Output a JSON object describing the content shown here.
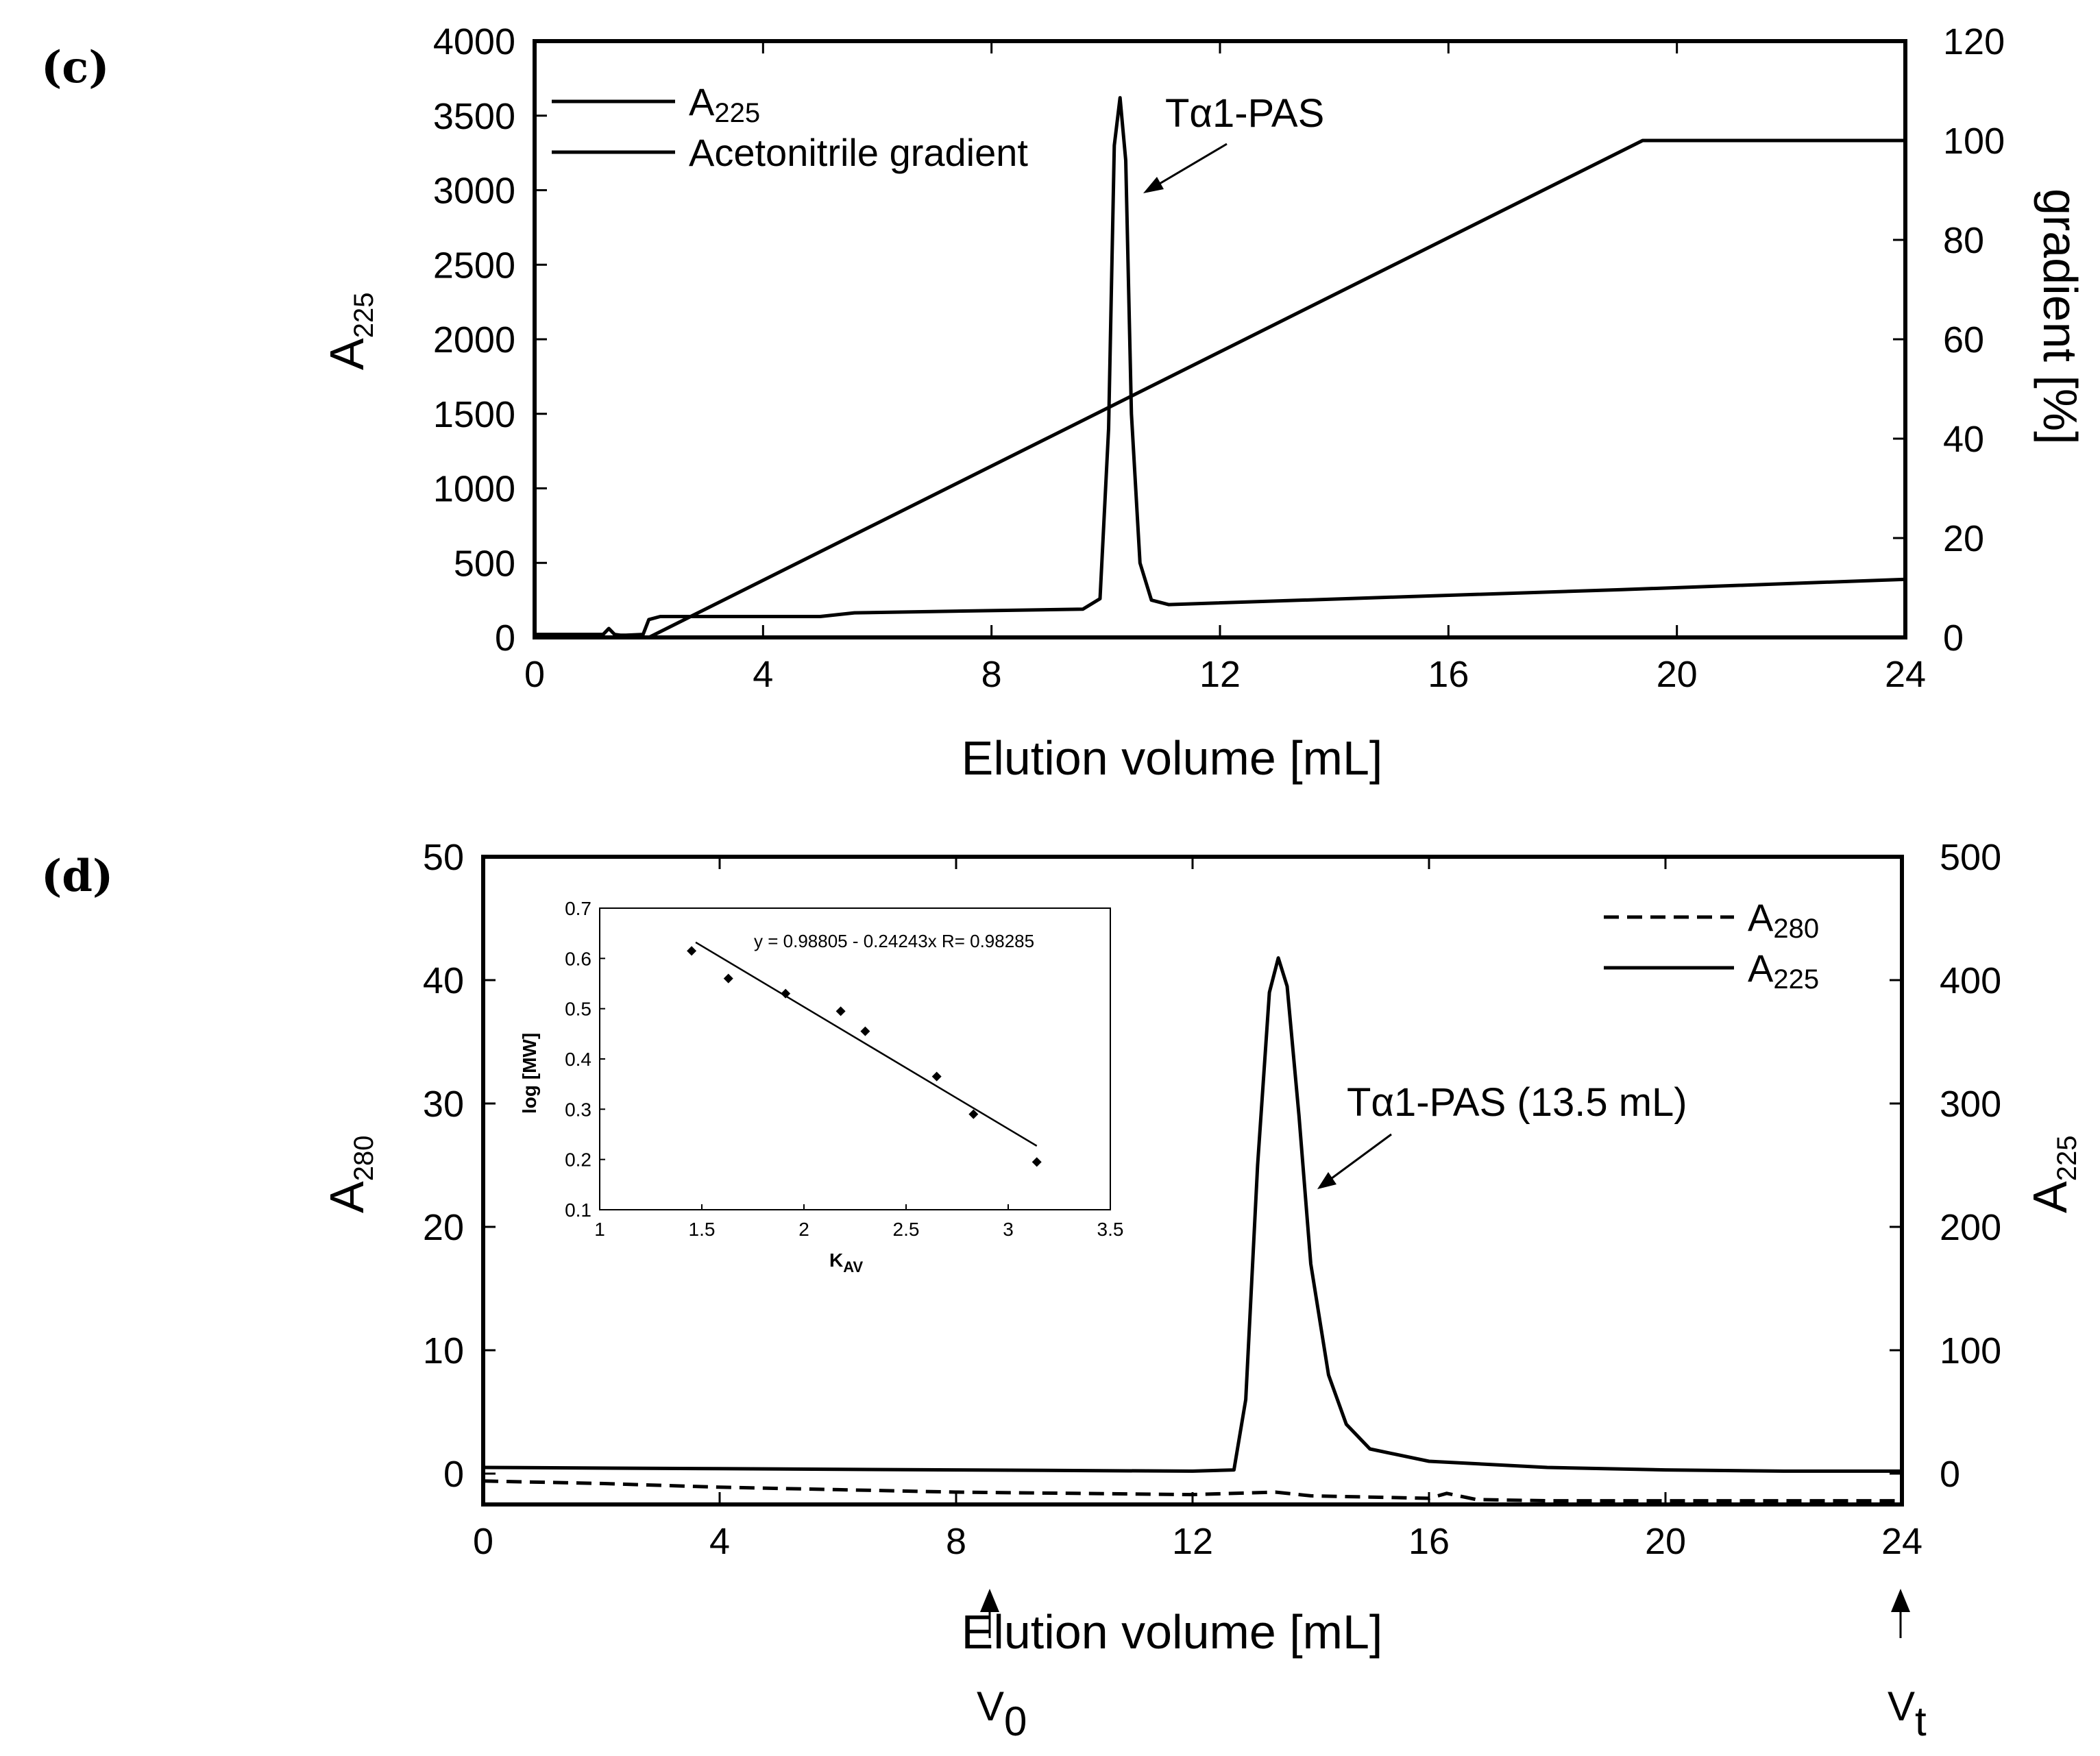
{
  "panels": {
    "c": {
      "label": "(c)",
      "ylabel_left": "A",
      "ylabel_left_sub": "225",
      "ylabel_right": "gradient [%]",
      "xlabel": "Elution volume [mL]",
      "legend": [
        {
          "text": "A",
          "sub": "225"
        },
        {
          "text": "Acetonitrile gradient",
          "sub": ""
        }
      ],
      "annotation": "Tα1-PAS"
    },
    "d": {
      "label": "(d)",
      "ylabel_left": "A",
      "ylabel_left_sub": "280",
      "ylabel_right": "A",
      "ylabel_right_sub": "225",
      "xlabel": "Elution volume [mL]",
      "legend": [
        {
          "text": "A",
          "sub": "280",
          "style": "dashed"
        },
        {
          "text": "A",
          "sub": "225",
          "style": "solid"
        }
      ],
      "annotation": "Tα1-PAS (13.5 mL)",
      "v0_label": "V",
      "v0_sub": "0",
      "vt_label": "V",
      "vt_sub": "t",
      "inset": {
        "equation": "y = 0.98805 - 0.24243x   R= 0.98285",
        "xlabel": "K",
        "xlabel_sub": "AV",
        "ylabel": "log [MW]"
      }
    }
  },
  "chart_data": [
    {
      "type": "line",
      "panel": "c",
      "xlabel": "Elution volume [mL]",
      "ylabel": "A225",
      "ylabel_right": "gradient [%]",
      "xlim": [
        0,
        24
      ],
      "ylim": [
        0,
        4000
      ],
      "ylim_right": [
        0,
        120
      ],
      "xticks": [
        0,
        4,
        8,
        12,
        16,
        20,
        24
      ],
      "yticks": [
        0,
        500,
        1000,
        1500,
        2000,
        2500,
        3000,
        3500,
        4000
      ],
      "yticks_right": [
        0,
        20,
        40,
        60,
        80,
        100,
        120
      ],
      "series": [
        {
          "name": "A225",
          "axis": "left",
          "x": [
            0,
            1.2,
            1.3,
            1.4,
            1.5,
            1.6,
            1.9,
            2.0,
            2.2,
            5.0,
            5.6,
            9.6,
            9.9,
            10.05,
            10.15,
            10.25,
            10.35,
            10.45,
            10.6,
            10.8,
            11.1,
            15.0,
            19.0,
            24.0
          ],
          "y": [
            20,
            20,
            60,
            20,
            15,
            15,
            20,
            120,
            140,
            140,
            165,
            190,
            260,
            1400,
            3300,
            3620,
            3200,
            1500,
            500,
            250,
            220,
            270,
            320,
            390
          ]
        },
        {
          "name": "Acetonitrile gradient",
          "axis": "right",
          "x": [
            0,
            1.8,
            2.0,
            19.4,
            24
          ],
          "y": [
            0,
            0,
            0,
            100,
            100
          ]
        }
      ],
      "annotations": [
        {
          "text": "Tα1-PAS",
          "x": 10.3,
          "y": 3620
        }
      ],
      "legend_position": "top-left",
      "grid": false
    },
    {
      "type": "line",
      "panel": "d",
      "xlabel": "Elution volume [mL]",
      "ylabel": "A280",
      "ylabel_right": "A225",
      "xlim": [
        0,
        24
      ],
      "ylim": [
        -2.5,
        50
      ],
      "ylim_right": [
        -25,
        500
      ],
      "xticks": [
        0,
        4,
        8,
        12,
        16,
        20,
        24
      ],
      "yticks": [
        0,
        10,
        20,
        30,
        40,
        50
      ],
      "yticks_right": [
        0,
        100,
        200,
        300,
        400,
        500
      ],
      "series": [
        {
          "name": "A280",
          "style": "dashed",
          "axis": "left",
          "x": [
            0,
            2,
            4,
            6,
            8,
            10,
            12,
            13.4,
            14,
            15,
            16,
            16.3,
            16.8,
            18,
            20,
            22,
            24
          ],
          "y": [
            -0.6,
            -0.8,
            -1.1,
            -1.3,
            -1.5,
            -1.6,
            -1.7,
            -1.5,
            -1.8,
            -1.9,
            -2.0,
            -1.6,
            -2.1,
            -2.2,
            -2.2,
            -2.2,
            -2.2
          ]
        },
        {
          "name": "A225",
          "style": "solid",
          "axis": "right",
          "x": [
            0,
            4,
            8,
            12,
            12.7,
            12.9,
            13.1,
            13.3,
            13.45,
            13.6,
            13.8,
            14.0,
            14.3,
            14.6,
            15.0,
            16,
            18,
            20,
            22,
            24
          ],
          "y": [
            5,
            4,
            3,
            2,
            3,
            60,
            250,
            390,
            418,
            395,
            290,
            170,
            80,
            40,
            20,
            10,
            5,
            3,
            2,
            2
          ]
        }
      ],
      "annotations": [
        {
          "text": "Tα1-PAS (13.5 mL)",
          "x": 13.5,
          "y": 41.8
        },
        {
          "text": "V0",
          "x": 8.6
        },
        {
          "text": "Vt",
          "x": 24
        }
      ],
      "legend_position": "top-right",
      "grid": false
    },
    {
      "type": "scatter",
      "panel": "d-inset",
      "xlabel": "KAV",
      "ylabel": "log [MW]",
      "xlim": [
        1,
        3.5
      ],
      "ylim": [
        0.1,
        0.7
      ],
      "xticks": [
        1,
        1.5,
        2,
        2.5,
        3,
        3.5
      ],
      "yticks": [
        0.1,
        0.2,
        0.3,
        0.4,
        0.5,
        0.6,
        0.7
      ],
      "series": [
        {
          "name": "",
          "type": "scatter",
          "x": [
            1.45,
            1.63,
            1.91,
            2.18,
            2.3,
            2.65,
            2.83,
            3.14
          ],
          "y": [
            0.615,
            0.56,
            0.53,
            0.495,
            0.455,
            0.365,
            0.29,
            0.195
          ]
        },
        {
          "name": "",
          "type": "line",
          "x": [
            1.47,
            3.14
          ],
          "y": [
            0.632,
            0.227
          ]
        }
      ],
      "fit": {
        "intercept": 0.98805,
        "slope": -0.24243,
        "R": 0.98285
      }
    }
  ]
}
